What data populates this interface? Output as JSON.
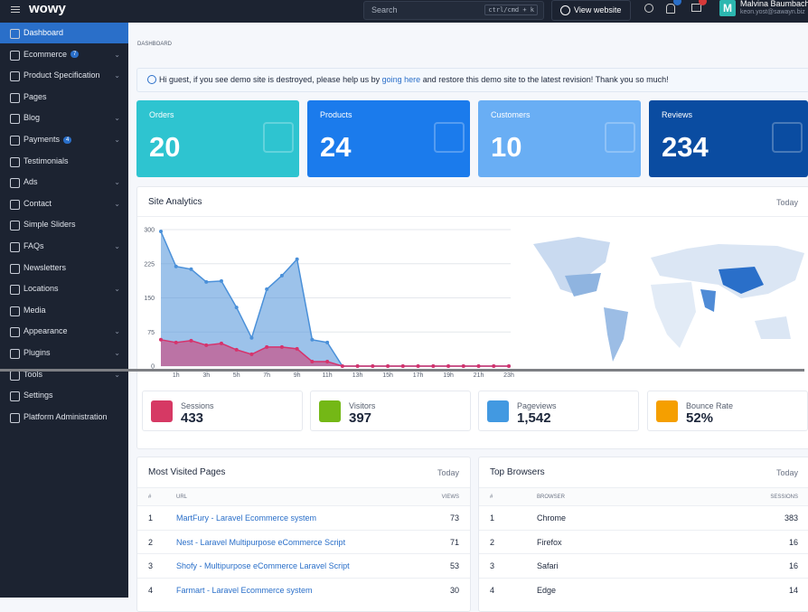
{
  "topbar": {
    "brand": "wowy",
    "search_placeholder": "Search",
    "search_shortcut": "ctrl/cmd + k",
    "view_website": "View website",
    "user": {
      "avatar": "M",
      "name": "Malvina Baumbach",
      "email": "keon.yost@sawayn.biz"
    }
  },
  "sidebar": [
    {
      "label": "Dashboard",
      "active": true
    },
    {
      "label": "Ecommerce",
      "badge": "7",
      "has_submenu": true
    },
    {
      "label": "Product Specification",
      "has_submenu": true
    },
    {
      "label": "Pages"
    },
    {
      "label": "Blog",
      "has_submenu": true
    },
    {
      "label": "Payments",
      "badge": "4",
      "has_submenu": true
    },
    {
      "label": "Testimonials"
    },
    {
      "label": "Ads",
      "has_submenu": true
    },
    {
      "label": "Contact",
      "has_submenu": true
    },
    {
      "label": "Simple Sliders"
    },
    {
      "label": "FAQs",
      "has_submenu": true
    },
    {
      "label": "Newsletters"
    },
    {
      "label": "Locations",
      "has_submenu": true
    },
    {
      "label": "Media"
    },
    {
      "label": "Appearance",
      "has_submenu": true
    },
    {
      "label": "Plugins",
      "has_submenu": true
    },
    {
      "label": "Tools",
      "has_submenu": true
    },
    {
      "label": "Settings"
    },
    {
      "label": "Platform Administration"
    }
  ],
  "breadcrumb": "DASHBOARD",
  "alert": {
    "before": "Hi guest, if you see demo site is destroyed, please help us by ",
    "link": "going here",
    "after": " and restore this demo site to the latest revision! Thank you so much!"
  },
  "stat_cards": [
    {
      "label": "Orders",
      "value": 20,
      "color": "#2ec4d0"
    },
    {
      "label": "Products",
      "value": 24,
      "color": "#1b7bec"
    },
    {
      "label": "Customers",
      "value": 10,
      "color": "#69aef4"
    },
    {
      "label": "Reviews",
      "value": 234,
      "color": "#0a4ca1"
    }
  ],
  "analytics": {
    "title": "Site Analytics",
    "period": "Today",
    "chart": {
      "type": "area",
      "categories": [
        null,
        "1h",
        null,
        "3h",
        null,
        "5h",
        null,
        "7h",
        null,
        "9h",
        null,
        "11h",
        null,
        "13h",
        null,
        "15h",
        null,
        "17h",
        null,
        "19h",
        null,
        "21h",
        null,
        "23h"
      ],
      "series": [
        {
          "color": "#4a90d9",
          "values": [
            296,
            219,
            213,
            185,
            187,
            129,
            62,
            169,
            199,
            235,
            58,
            52,
            0,
            0,
            0,
            0,
            0,
            0,
            0,
            0,
            0,
            0,
            0,
            0
          ]
        },
        {
          "color": "#d6336c",
          "values": [
            58,
            52,
            56,
            46,
            50,
            36,
            26,
            42,
            42,
            38,
            10,
            10,
            0,
            0,
            0,
            0,
            0,
            0,
            0,
            0,
            0,
            0,
            0,
            0
          ]
        }
      ],
      "ylim": [
        0,
        300
      ],
      "yticks": [
        0,
        75,
        150,
        225,
        300
      ],
      "grid": true
    },
    "metrics": [
      {
        "label": "Sessions",
        "value": "433",
        "color": "#d63964"
      },
      {
        "label": "Visitors",
        "value": "397",
        "color": "#74b816"
      },
      {
        "label": "Pageviews",
        "value": "1,542",
        "color": "#4299e1"
      },
      {
        "label": "Bounce Rate",
        "value": "52%",
        "color": "#f59f00"
      }
    ]
  },
  "most_visited": {
    "title": "Most Visited Pages",
    "period": "Today",
    "columns": [
      "#",
      "URL",
      "VIEWS"
    ],
    "rows": [
      [
        1,
        "MartFury - Laravel Ecommerce system",
        73
      ],
      [
        2,
        "Nest - Laravel Multipurpose eCommerce Script",
        71
      ],
      [
        3,
        "Shofy - Multipurpose eCommerce Laravel Script",
        53
      ],
      [
        4,
        "Farmart - Laravel Ecommerce system",
        30
      ]
    ]
  },
  "top_browsers": {
    "title": "Top Browsers",
    "period": "Today",
    "columns": [
      "#",
      "BROWSER",
      "SESSIONS"
    ],
    "rows": [
      [
        1,
        "Chrome",
        383
      ],
      [
        2,
        "Firefox",
        16
      ],
      [
        3,
        "Safari",
        16
      ],
      [
        4,
        "Edge",
        14
      ]
    ]
  }
}
